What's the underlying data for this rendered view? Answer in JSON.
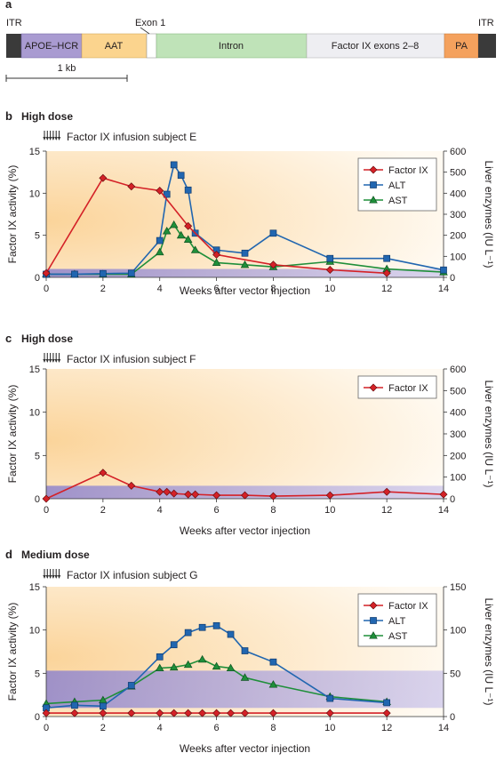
{
  "colors": {
    "factor_ix": "#d42127",
    "alt": "#2166b0",
    "ast": "#1f8f3a",
    "normal_band": "#9b8fd0",
    "panel_bg_warm": "#fbd9a6",
    "panel_bg_light": "#fff7ec",
    "apoe": "#a99bd1",
    "aat": "#fbd48e",
    "intron": "#bfe3b8",
    "exons": "#eeeef2",
    "pa": "#f4a15d",
    "itr": "#3a3a3a"
  },
  "construct": {
    "panel_letter": "a",
    "itr_left": "ITR",
    "itr_right": "ITR",
    "exon1": "Exon 1",
    "segments": [
      "APOE–HCR",
      "AAT",
      "Intron",
      "Factor IX exons 2–8",
      "PA"
    ],
    "scale_label": "1 kb"
  },
  "chart_data": [
    {
      "panel_letter": "b",
      "title": "High dose",
      "infusion_label": "Factor IX infusion subject E",
      "type": "line",
      "xlabel": "Weeks after vector injection",
      "ylabel_left": "Factor IX activity (%)",
      "ylabel_right": "Liver enzymes (IU L⁻¹)",
      "xlim": [
        0,
        14
      ],
      "x_ticks": [
        0,
        2,
        4,
        6,
        8,
        10,
        12,
        14
      ],
      "ylim_left": [
        0,
        15
      ],
      "y_ticks_left": [
        0,
        5,
        10,
        15
      ],
      "ylim_right": [
        0,
        600
      ],
      "y_ticks_right": [
        0,
        100,
        200,
        300,
        400,
        500,
        600
      ],
      "normal_band_right": [
        0,
        40
      ],
      "legend": [
        "Factor IX",
        "ALT",
        "AST"
      ],
      "series": [
        {
          "name": "Factor IX",
          "axis": "left",
          "marker": "diamond",
          "color": "factor_ix",
          "x": [
            0,
            2,
            3,
            4,
            5,
            6,
            8,
            10,
            12
          ],
          "y": [
            0.5,
            11.8,
            10.8,
            10.3,
            6.1,
            2.7,
            1.5,
            0.9,
            0.5
          ]
        },
        {
          "name": "ALT",
          "axis": "right",
          "marker": "square",
          "color": "alt",
          "x": [
            0,
            1,
            2,
            3,
            4,
            4.25,
            4.5,
            4.75,
            5,
            5.25,
            6,
            7,
            8,
            10,
            12,
            14
          ],
          "y": [
            15,
            15,
            18,
            20,
            175,
            395,
            535,
            485,
            415,
            210,
            130,
            115,
            210,
            90,
            90,
            35
          ]
        },
        {
          "name": "AST",
          "axis": "right",
          "marker": "triangle",
          "color": "ast",
          "x": [
            0,
            1,
            2,
            3,
            4,
            4.25,
            4.5,
            4.75,
            5,
            5.25,
            6,
            7,
            8,
            10,
            12,
            14
          ],
          "y": [
            15,
            15,
            15,
            15,
            120,
            220,
            250,
            200,
            180,
            130,
            70,
            60,
            50,
            75,
            40,
            25
          ]
        }
      ]
    },
    {
      "panel_letter": "c",
      "title": "High dose",
      "infusion_label": "Factor IX infusion subject F",
      "type": "line",
      "xlabel": "Weeks after vector injection",
      "ylabel_left": "Factor IX activity (%)",
      "ylabel_right": "Liver enzymes (IU L⁻¹)",
      "xlim": [
        0,
        14
      ],
      "x_ticks": [
        0,
        2,
        4,
        6,
        8,
        10,
        12,
        14
      ],
      "ylim_left": [
        0,
        15
      ],
      "y_ticks_left": [
        0,
        5,
        10,
        15
      ],
      "ylim_right": [
        0,
        600
      ],
      "y_ticks_right": [
        0,
        100,
        200,
        300,
        400,
        500,
        600
      ],
      "normal_band_right": [
        0,
        60
      ],
      "legend": [
        "Factor IX"
      ],
      "series": [
        {
          "name": "Factor IX",
          "axis": "left",
          "marker": "diamond",
          "color": "factor_ix",
          "x": [
            0,
            2,
            3,
            4,
            4.25,
            4.5,
            5,
            5.25,
            6,
            7,
            8,
            10,
            12,
            14
          ],
          "y": [
            0,
            3.0,
            1.5,
            0.8,
            0.8,
            0.6,
            0.5,
            0.5,
            0.4,
            0.4,
            0.3,
            0.4,
            0.8,
            0.5
          ]
        }
      ]
    },
    {
      "panel_letter": "d",
      "title": "Medium dose",
      "infusion_label": "Factor IX infusion subject G",
      "type": "line",
      "xlabel": "Weeks after vector injection",
      "ylabel_left": "Factor IX activity (%)",
      "ylabel_right": "Liver enzymes (IU L⁻¹)",
      "xlim": [
        0,
        14
      ],
      "x_ticks": [
        0,
        2,
        4,
        6,
        8,
        10,
        12,
        14
      ],
      "ylim_left": [
        0,
        15
      ],
      "y_ticks_left": [
        0,
        5,
        10,
        15
      ],
      "ylim_right": [
        0,
        150
      ],
      "y_ticks_right": [
        0,
        50,
        100,
        150
      ],
      "normal_band_right": [
        10,
        53
      ],
      "legend": [
        "Factor IX",
        "ALT",
        "AST"
      ],
      "series": [
        {
          "name": "Factor IX",
          "axis": "left",
          "marker": "diamond",
          "color": "factor_ix",
          "x": [
            0,
            1,
            2,
            3,
            4,
            4.5,
            5,
            5.5,
            6,
            6.5,
            7,
            8,
            10,
            12
          ],
          "y": [
            0.4,
            0.4,
            0.4,
            0.4,
            0.4,
            0.4,
            0.4,
            0.4,
            0.4,
            0.4,
            0.4,
            0.4,
            0.4,
            0.4
          ]
        },
        {
          "name": "ALT",
          "axis": "right",
          "marker": "square",
          "color": "alt",
          "x": [
            0,
            1,
            2,
            3,
            4,
            4.5,
            5,
            5.5,
            6,
            6.5,
            7,
            8,
            10,
            12
          ],
          "y": [
            10,
            13,
            12,
            36,
            69,
            83,
            97,
            103,
            105,
            95,
            76,
            63,
            21,
            16
          ]
        },
        {
          "name": "AST",
          "axis": "right",
          "marker": "triangle",
          "color": "ast",
          "x": [
            0,
            1,
            2,
            3,
            4,
            4.5,
            5,
            5.5,
            6,
            6.5,
            7,
            8,
            10,
            12
          ],
          "y": [
            15,
            17,
            19,
            35,
            56,
            57,
            60,
            66,
            58,
            56,
            45,
            37,
            23,
            17
          ]
        }
      ]
    }
  ]
}
